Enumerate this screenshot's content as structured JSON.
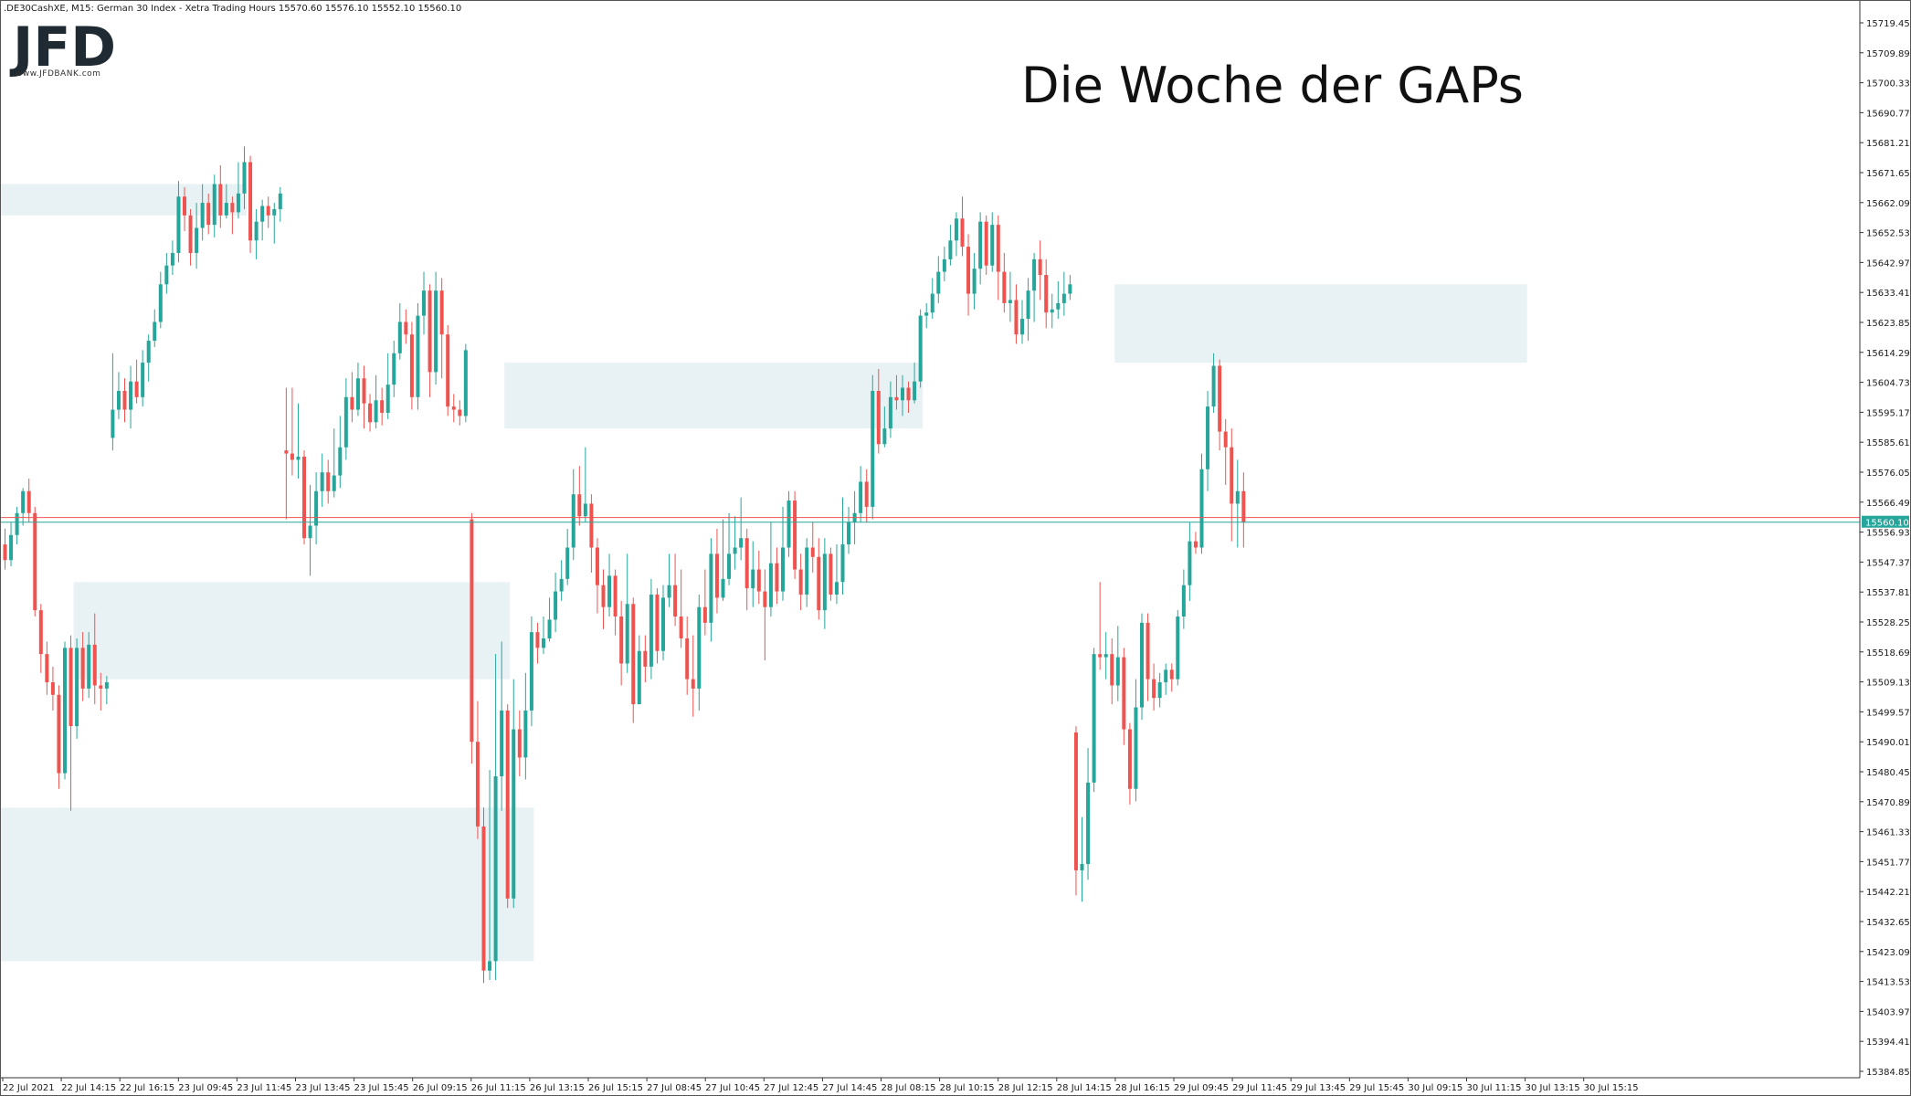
{
  "header": {
    "info": ".DE30CashXE, M15:  German 30 Index  - Xetra Trading Hours  15570.60 15576.10 15552.10 15560.10"
  },
  "logo": {
    "text": "JFD",
    "subtitle": "www.JFDBANK.com"
  },
  "title": "Die Woche der GAPs",
  "colors": {
    "up": "#26a69a",
    "down": "#ef5350",
    "gap_zone": "#e8f2f5",
    "price_line_red": "#ef5350",
    "price_line_green": "#26a69a",
    "axis": "#333333"
  },
  "chart_data": {
    "type": "candlestick",
    "instrument": ".DE30CashXE",
    "timeframe": "M15",
    "ylim": [
      15377,
      15724
    ],
    "y_ticks": [
      "15719.45",
      "15709.89",
      "15700.33",
      "15690.77",
      "15681.21",
      "15671.65",
      "15662.09",
      "15652.53",
      "15642.97",
      "15633.41",
      "15623.85",
      "15614.29",
      "15604.73",
      "15595.17",
      "15585.61",
      "15576.05",
      "15566.49",
      "15556.93",
      "15547.37",
      "15537.81",
      "15528.25",
      "15518.69",
      "15509.13",
      "15499.57",
      "15490.01",
      "15480.45",
      "15470.89",
      "15461.33",
      "15451.77",
      "15442.21",
      "15432.65",
      "15423.09",
      "15413.53",
      "15403.97",
      "15394.41",
      "15384.85"
    ],
    "x_labels": [
      "22 Jul 2021",
      "22 Jul 14:15",
      "22 Jul 16:15",
      "23 Jul 09:45",
      "23 Jul 11:45",
      "23 Jul 13:45",
      "23 Jul 15:45",
      "26 Jul 09:15",
      "26 Jul 11:15",
      "26 Jul 13:15",
      "26 Jul 15:15",
      "27 Jul 08:45",
      "27 Jul 10:45",
      "27 Jul 12:45",
      "27 Jul 14:45",
      "28 Jul 08:15",
      "28 Jul 10:15",
      "28 Jul 12:15",
      "28 Jul 14:15",
      "28 Jul 16:15",
      "29 Jul 09:45",
      "29 Jul 11:45",
      "29 Jul 13:45",
      "29 Jul 15:45",
      "30 Jul 09:15",
      "30 Jul 11:15",
      "30 Jul 13:15",
      "30 Jul 15:15"
    ],
    "last_price": "15560.10",
    "last_price_value": 15560.1,
    "prev_close_value": 15561.6,
    "gap_zones": [
      {
        "from": 0,
        "to": 40,
        "low": 15658,
        "high": 15668
      },
      {
        "from": 84,
        "to": 153,
        "low": 15590,
        "high": 15611
      },
      {
        "from": 12,
        "to": 84,
        "low": 15510,
        "high": 15541
      },
      {
        "from": 0,
        "to": 88,
        "low": 15420,
        "high": 15469
      },
      {
        "from": 186,
        "to": 254,
        "low": 15611,
        "high": 15636
      }
    ],
    "candles": [
      [
        15553,
        15548,
        15558,
        15545
      ],
      [
        15548,
        15556,
        15560,
        15546
      ],
      [
        15556,
        15563,
        15565,
        15553
      ],
      [
        15563,
        15570,
        15571,
        15559
      ],
      [
        15570,
        15563,
        15574,
        15560
      ],
      [
        15563,
        15532,
        15565,
        15530
      ],
      [
        15532,
        15518,
        15534,
        15512
      ],
      [
        15518,
        15509,
        15522,
        15505
      ],
      [
        15509,
        15505,
        15514,
        15500
      ],
      [
        15505,
        15480,
        15508,
        15475
      ],
      [
        15480,
        15520,
        15522,
        15478
      ],
      [
        15520,
        15495,
        15524,
        15468
      ],
      [
        15495,
        15520,
        15523,
        15491
      ],
      [
        15520,
        15507,
        15525,
        15503
      ],
      [
        15507,
        15521,
        15525,
        15504
      ],
      [
        15521,
        15508,
        15531,
        15502
      ],
      [
        15508,
        15507,
        15512,
        15500
      ],
      [
        15507,
        15509,
        15511,
        15502
      ],
      [
        15587,
        15596,
        15614,
        15583
      ],
      [
        15596,
        15602,
        15608,
        15593
      ],
      [
        15602,
        15596,
        15606,
        15592
      ],
      [
        15596,
        15605,
        15610,
        15590
      ],
      [
        15605,
        15600,
        15612,
        15598
      ],
      [
        15600,
        15611,
        15615,
        15597
      ],
      [
        15611,
        15618,
        15620,
        15605
      ],
      [
        15618,
        15624,
        15628,
        15616
      ],
      [
        15624,
        15636,
        15640,
        15622
      ],
      [
        15636,
        15642,
        15646,
        15633
      ],
      [
        15642,
        15646,
        15650,
        15639
      ],
      [
        15646,
        15664,
        15669,
        15643
      ],
      [
        15664,
        15658,
        15667,
        15653
      ],
      [
        15658,
        15646,
        15660,
        15642
      ],
      [
        15646,
        15654,
        15662,
        15641
      ],
      [
        15654,
        15662,
        15668,
        15650
      ],
      [
        15662,
        15655,
        15665,
        15652
      ],
      [
        15655,
        15668,
        15671,
        15651
      ],
      [
        15668,
        15658,
        15674,
        15654
      ],
      [
        15658,
        15662,
        15668,
        15657
      ],
      [
        15662,
        15659,
        15664,
        15652
      ],
      [
        15659,
        15665,
        15675,
        15657
      ],
      [
        15665,
        15675,
        15680,
        15660
      ],
      [
        15675,
        15650,
        15677,
        15646
      ],
      [
        15650,
        15656,
        15660,
        15644
      ],
      [
        15656,
        15661,
        15663,
        15650
      ],
      [
        15661,
        15658,
        15664,
        15654
      ],
      [
        15658,
        15660,
        15662,
        15649
      ],
      [
        15660,
        15665,
        15667,
        15656
      ],
      [
        15583,
        15582,
        15603,
        15561
      ],
      [
        15582,
        15580,
        15603,
        15575
      ],
      [
        15580,
        15581,
        15598,
        15574
      ],
      [
        15581,
        15555,
        15583,
        15553
      ],
      [
        15555,
        15559,
        15572,
        15543
      ],
      [
        15559,
        15570,
        15576,
        15553
      ],
      [
        15570,
        15576,
        15582,
        15565
      ],
      [
        15576,
        15570,
        15580,
        15566
      ],
      [
        15570,
        15575,
        15590,
        15568
      ],
      [
        15575,
        15584,
        15594,
        15571
      ],
      [
        15584,
        15600,
        15606,
        15580
      ],
      [
        15600,
        15596,
        15608,
        15592
      ],
      [
        15596,
        15606,
        15611,
        15594
      ],
      [
        15606,
        15598,
        15610,
        15590
      ],
      [
        15598,
        15592,
        15601,
        15589
      ],
      [
        15592,
        15599,
        15607,
        15590
      ],
      [
        15599,
        15595,
        15603,
        15591
      ],
      [
        15595,
        15604,
        15614,
        15593
      ],
      [
        15604,
        15614,
        15618,
        15600
      ],
      [
        15614,
        15624,
        15630,
        15612
      ],
      [
        15624,
        15620,
        15628,
        15617
      ],
      [
        15620,
        15600,
        15624,
        15596
      ],
      [
        15600,
        15626,
        15630,
        15596
      ],
      [
        15626,
        15634,
        15640,
        15620
      ],
      [
        15634,
        15608,
        15636,
        15600
      ],
      [
        15608,
        15634,
        15640,
        15604
      ],
      [
        15634,
        15620,
        15638,
        15606
      ],
      [
        15620,
        15597,
        15623,
        15594
      ],
      [
        15597,
        15596,
        15601,
        15592
      ],
      [
        15596,
        15594,
        15599,
        15591
      ],
      [
        15594,
        15615,
        15617,
        15592
      ],
      [
        15561,
        15490,
        15563,
        15483
      ],
      [
        15490,
        15463,
        15503,
        15459
      ],
      [
        15463,
        15417,
        15469,
        15413
      ],
      [
        15417,
        15420,
        15481,
        15414
      ],
      [
        15420,
        15479,
        15518,
        15414
      ],
      [
        15479,
        15500,
        15522,
        15468
      ],
      [
        15500,
        15440,
        15502,
        15437
      ],
      [
        15440,
        15494,
        15510,
        15437
      ],
      [
        15494,
        15485,
        15500,
        15479
      ],
      [
        15485,
        15500,
        15512,
        15478
      ],
      [
        15500,
        15525,
        15530,
        15495
      ],
      [
        15525,
        15520,
        15528,
        15515
      ],
      [
        15520,
        15523,
        15530,
        15518
      ],
      [
        15523,
        15529,
        15536,
        15522
      ],
      [
        15529,
        15538,
        15544,
        15525
      ],
      [
        15538,
        15542,
        15548,
        15535
      ],
      [
        15542,
        15552,
        15558,
        15540
      ],
      [
        15552,
        15569,
        15577,
        15548
      ],
      [
        15569,
        15562,
        15578,
        15559
      ],
      [
        15562,
        15566,
        15584,
        15560
      ],
      [
        15566,
        15552,
        15569,
        15544
      ],
      [
        15552,
        15540,
        15555,
        15531
      ],
      [
        15540,
        15533,
        15545,
        15526
      ],
      [
        15533,
        15543,
        15550,
        15530
      ],
      [
        15543,
        15530,
        15545,
        15524
      ],
      [
        15530,
        15515,
        15535,
        15508
      ],
      [
        15515,
        15534,
        15550,
        15512
      ],
      [
        15534,
        15502,
        15536,
        15496
      ],
      [
        15502,
        15519,
        15524,
        15515
      ],
      [
        15519,
        15514,
        15524,
        15509
      ],
      [
        15514,
        15537,
        15542,
        15510
      ],
      [
        15537,
        15519,
        15539,
        15515
      ],
      [
        15519,
        15536,
        15540,
        15516
      ],
      [
        15536,
        15540,
        15550,
        15533
      ],
      [
        15540,
        15530,
        15550,
        15527
      ],
      [
        15530,
        15523,
        15545,
        15520
      ],
      [
        15523,
        15510,
        15530,
        15505
      ],
      [
        15510,
        15507,
        15524,
        15498
      ],
      [
        15507,
        15533,
        15537,
        15500
      ],
      [
        15533,
        15528,
        15545,
        15524
      ],
      [
        15528,
        15550,
        15555,
        15522
      ],
      [
        15550,
        15536,
        15558,
        15531
      ],
      [
        15536,
        15542,
        15561,
        15535
      ],
      [
        15542,
        15550,
        15563,
        15540
      ],
      [
        15550,
        15552,
        15562,
        15545
      ],
      [
        15552,
        15555,
        15568,
        15548
      ],
      [
        15555,
        15539,
        15558,
        15532
      ],
      [
        15539,
        15545,
        15554,
        15533
      ],
      [
        15545,
        15538,
        15551,
        15534
      ],
      [
        15538,
        15533,
        15545,
        15516
      ],
      [
        15533,
        15547,
        15560,
        15530
      ],
      [
        15547,
        15538,
        15552,
        15534
      ],
      [
        15538,
        15552,
        15565,
        15535
      ],
      [
        15552,
        15567,
        15570,
        15549
      ],
      [
        15567,
        15545,
        15570,
        15542
      ],
      [
        15545,
        15537,
        15550,
        15532
      ],
      [
        15537,
        15552,
        15555,
        15533
      ],
      [
        15552,
        15549,
        15560,
        15544
      ],
      [
        15549,
        15532,
        15555,
        15529
      ],
      [
        15532,
        15550,
        15555,
        15526
      ],
      [
        15550,
        15537,
        15552,
        15535
      ],
      [
        15537,
        15541,
        15553,
        15534
      ],
      [
        15541,
        15553,
        15568,
        15537
      ],
      [
        15553,
        15560,
        15565,
        15550
      ],
      [
        15560,
        15563,
        15570,
        15553
      ],
      [
        15563,
        15573,
        15578,
        15560
      ],
      [
        15573,
        15565,
        15577,
        15560
      ],
      [
        15565,
        15602,
        15607,
        15561
      ],
      [
        15602,
        15585,
        15609,
        15582
      ],
      [
        15585,
        15590,
        15597,
        15584
      ],
      [
        15590,
        15600,
        15605,
        15587
      ],
      [
        15600,
        15599,
        15607,
        15596
      ],
      [
        15599,
        15603,
        15607,
        15594
      ],
      [
        15603,
        15599,
        15605,
        15595
      ],
      [
        15599,
        15605,
        15611,
        15598
      ],
      [
        15605,
        15626,
        15628,
        15603
      ],
      [
        15626,
        15627,
        15630,
        15622
      ],
      [
        15627,
        15633,
        15638,
        15625
      ],
      [
        15633,
        15640,
        15645,
        15630
      ],
      [
        15640,
        15644,
        15648,
        15637
      ],
      [
        15644,
        15650,
        15655,
        15642
      ],
      [
        15650,
        15657,
        15659,
        15645
      ],
      [
        15657,
        15648,
        15664,
        15645
      ],
      [
        15648,
        15633,
        15652,
        15626
      ],
      [
        15633,
        15641,
        15646,
        15628
      ],
      [
        15641,
        15656,
        15659,
        15636
      ],
      [
        15656,
        15642,
        15658,
        15639
      ],
      [
        15642,
        15655,
        15659,
        15640
      ],
      [
        15655,
        15640,
        15658,
        15631
      ],
      [
        15640,
        15630,
        15646,
        15627
      ],
      [
        15630,
        15631,
        15640,
        15624
      ],
      [
        15631,
        15620,
        15636,
        15617
      ],
      [
        15620,
        15625,
        15631,
        15617
      ],
      [
        15625,
        15634,
        15638,
        15618
      ],
      [
        15634,
        15644,
        15646,
        15624
      ],
      [
        15644,
        15639,
        15650,
        15631
      ],
      [
        15639,
        15627,
        15644,
        15622
      ],
      [
        15627,
        15628,
        15633,
        15622
      ],
      [
        15628,
        15630,
        15637,
        15625
      ],
      [
        15630,
        15633,
        15640,
        15626
      ],
      [
        15633,
        15636,
        15639,
        15631
      ],
      [
        15493,
        15449,
        15495,
        15441
      ],
      [
        15449,
        15451,
        15466,
        15439
      ],
      [
        15451,
        15477,
        15488,
        15446
      ],
      [
        15477,
        15518,
        15520,
        15474
      ],
      [
        15518,
        15517,
        15541,
        15513
      ],
      [
        15517,
        15518,
        15525,
        15510
      ],
      [
        15518,
        15508,
        15523,
        15502
      ],
      [
        15508,
        15517,
        15527,
        15503
      ],
      [
        15517,
        15494,
        15520,
        15489
      ],
      [
        15494,
        15475,
        15496,
        15470
      ],
      [
        15475,
        15501,
        15510,
        15471
      ],
      [
        15501,
        15528,
        15531,
        15497
      ],
      [
        15528,
        15510,
        15531,
        15503
      ],
      [
        15510,
        15504,
        15515,
        15500
      ],
      [
        15504,
        15509,
        15512,
        15501
      ],
      [
        15509,
        15513,
        15515,
        15505
      ],
      [
        15513,
        15510,
        15515,
        15506
      ],
      [
        15510,
        15530,
        15532,
        15508
      ],
      [
        15530,
        15540,
        15545,
        15526
      ],
      [
        15540,
        15554,
        15560,
        15535
      ],
      [
        15554,
        15552,
        15557,
        15550
      ],
      [
        15552,
        15577,
        15582,
        15550
      ],
      [
        15577,
        15597,
        15602,
        15570
      ],
      [
        15597,
        15610,
        15614,
        15595
      ],
      [
        15610,
        15589,
        15612,
        15583
      ],
      [
        15589,
        15584,
        15593,
        15572
      ],
      [
        15584,
        15566,
        15590,
        15554
      ],
      [
        15566,
        15570,
        15580,
        15552
      ],
      [
        15570,
        15560,
        15576,
        15552
      ]
    ]
  }
}
